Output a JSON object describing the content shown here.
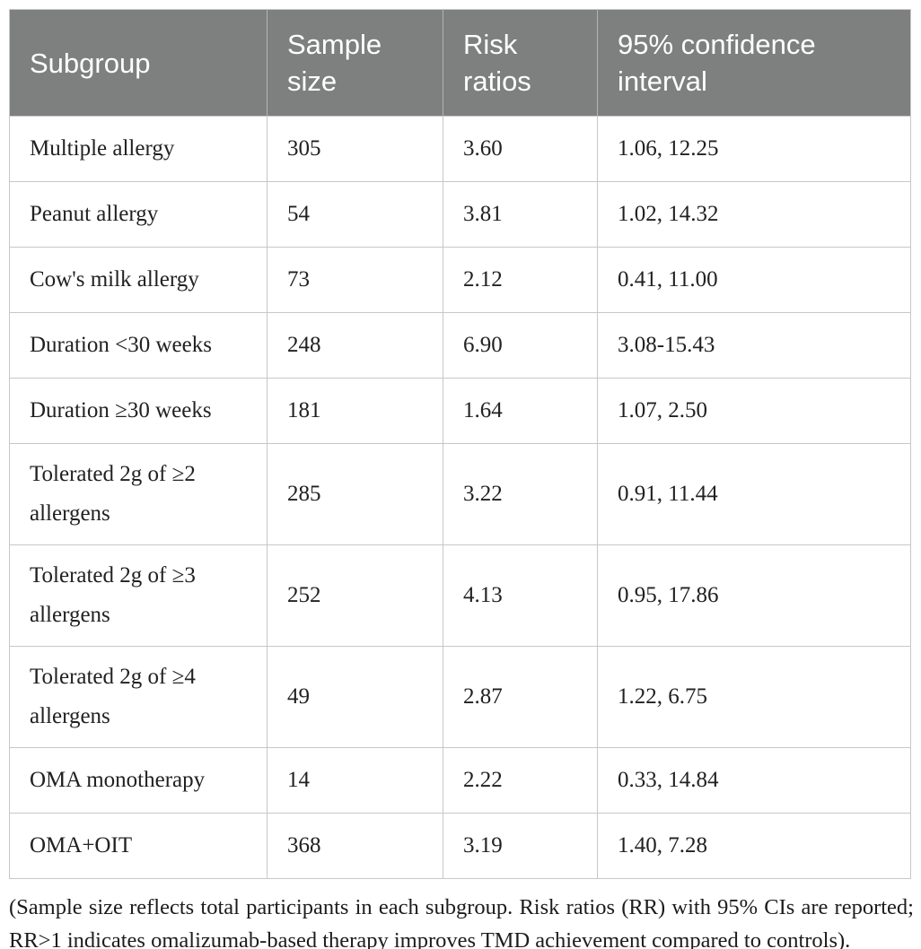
{
  "table": {
    "columns": [
      "Subgroup",
      "Sample size",
      "Risk ratios",
      "95% confidence interval"
    ],
    "rows": [
      {
        "subgroup": "Multiple allergy",
        "sample_size": "305",
        "risk_ratio": "3.60",
        "ci": "1.06, 12.25"
      },
      {
        "subgroup": "Peanut allergy",
        "sample_size": "54",
        "risk_ratio": "3.81",
        "ci": "1.02, 14.32"
      },
      {
        "subgroup": "Cow's milk allergy",
        "sample_size": "73",
        "risk_ratio": "2.12",
        "ci": "0.41, 11.00"
      },
      {
        "subgroup": "Duration <30 weeks",
        "sample_size": "248",
        "risk_ratio": "6.90",
        "ci": "3.08-15.43"
      },
      {
        "subgroup": "Duration ≥30 weeks",
        "sample_size": "181",
        "risk_ratio": "1.64",
        "ci": "1.07, 2.50"
      },
      {
        "subgroup": "Tolerated 2g of ≥2 allergens",
        "sample_size": "285",
        "risk_ratio": "3.22",
        "ci": "0.91, 11.44"
      },
      {
        "subgroup": "Tolerated 2g of ≥3 allergens",
        "sample_size": "252",
        "risk_ratio": "4.13",
        "ci": "0.95, 17.86"
      },
      {
        "subgroup": "Tolerated 2g of ≥4 allergens",
        "sample_size": "49",
        "risk_ratio": "2.87",
        "ci": "1.22, 6.75"
      },
      {
        "subgroup": "OMA monotherapy",
        "sample_size": "14",
        "risk_ratio": "2.22",
        "ci": "0.33, 14.84"
      },
      {
        "subgroup": "OMA+OIT",
        "sample_size": "368",
        "risk_ratio": "3.19",
        "ci": "1.40, 7.28"
      }
    ]
  },
  "footnote": "(Sample size reflects total participants in each subgroup. Risk ratios (RR) with 95% CIs are reported; RR>1 indicates omalizumab-based therapy improves TMD achievement compared to controls).",
  "colors": {
    "header_background": "#7e807f",
    "header_text": "#ffffff",
    "border": "#c7c7c7",
    "body_text": "#212121"
  }
}
